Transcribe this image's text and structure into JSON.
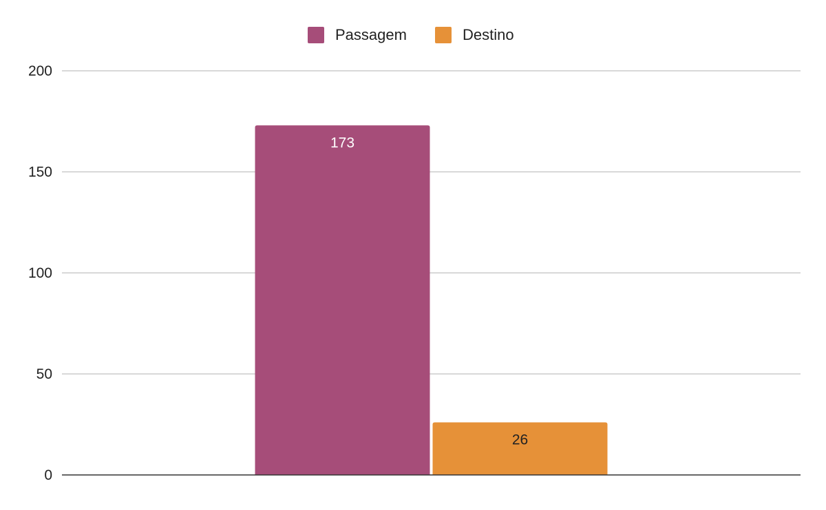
{
  "chart_data": {
    "type": "bar",
    "categories": [
      ""
    ],
    "series": [
      {
        "name": "Passagem",
        "values": [
          173
        ],
        "color": "#a64d79",
        "label_color": "#ffffff"
      },
      {
        "name": "Destino",
        "values": [
          26
        ],
        "color": "#e69138",
        "label_color": "#222222"
      }
    ],
    "title": "",
    "xlabel": "",
    "ylabel": "",
    "ylim": [
      0,
      200
    ],
    "yticks": [
      0,
      50,
      100,
      150,
      200
    ],
    "grid": true,
    "legend_position": "top-center",
    "data_labels": true
  }
}
